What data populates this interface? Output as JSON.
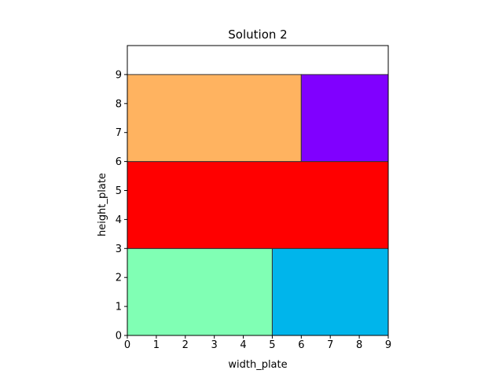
{
  "chart_data": {
    "type": "rectangle-packing",
    "title": "Solution 2",
    "xlabel": "width_plate",
    "ylabel": "height_plate",
    "xlim": [
      0,
      9
    ],
    "ylim": [
      0,
      10
    ],
    "xticks": [
      0,
      1,
      2,
      3,
      4,
      5,
      6,
      7,
      8,
      9
    ],
    "yticks": [
      0,
      1,
      2,
      3,
      4,
      5,
      6,
      7,
      8,
      9
    ],
    "grid": false,
    "rectangles": [
      {
        "x": 0,
        "y": 0,
        "width": 5,
        "height": 3,
        "color": "#80ffb4"
      },
      {
        "x": 5,
        "y": 0,
        "width": 4,
        "height": 3,
        "color": "#00b5eb"
      },
      {
        "x": 0,
        "y": 3,
        "width": 9,
        "height": 3,
        "color": "#ff0000"
      },
      {
        "x": 0,
        "y": 6,
        "width": 6,
        "height": 3,
        "color": "#ffb360"
      },
      {
        "x": 6,
        "y": 6,
        "width": 3,
        "height": 3,
        "color": "#8000ff"
      }
    ]
  }
}
